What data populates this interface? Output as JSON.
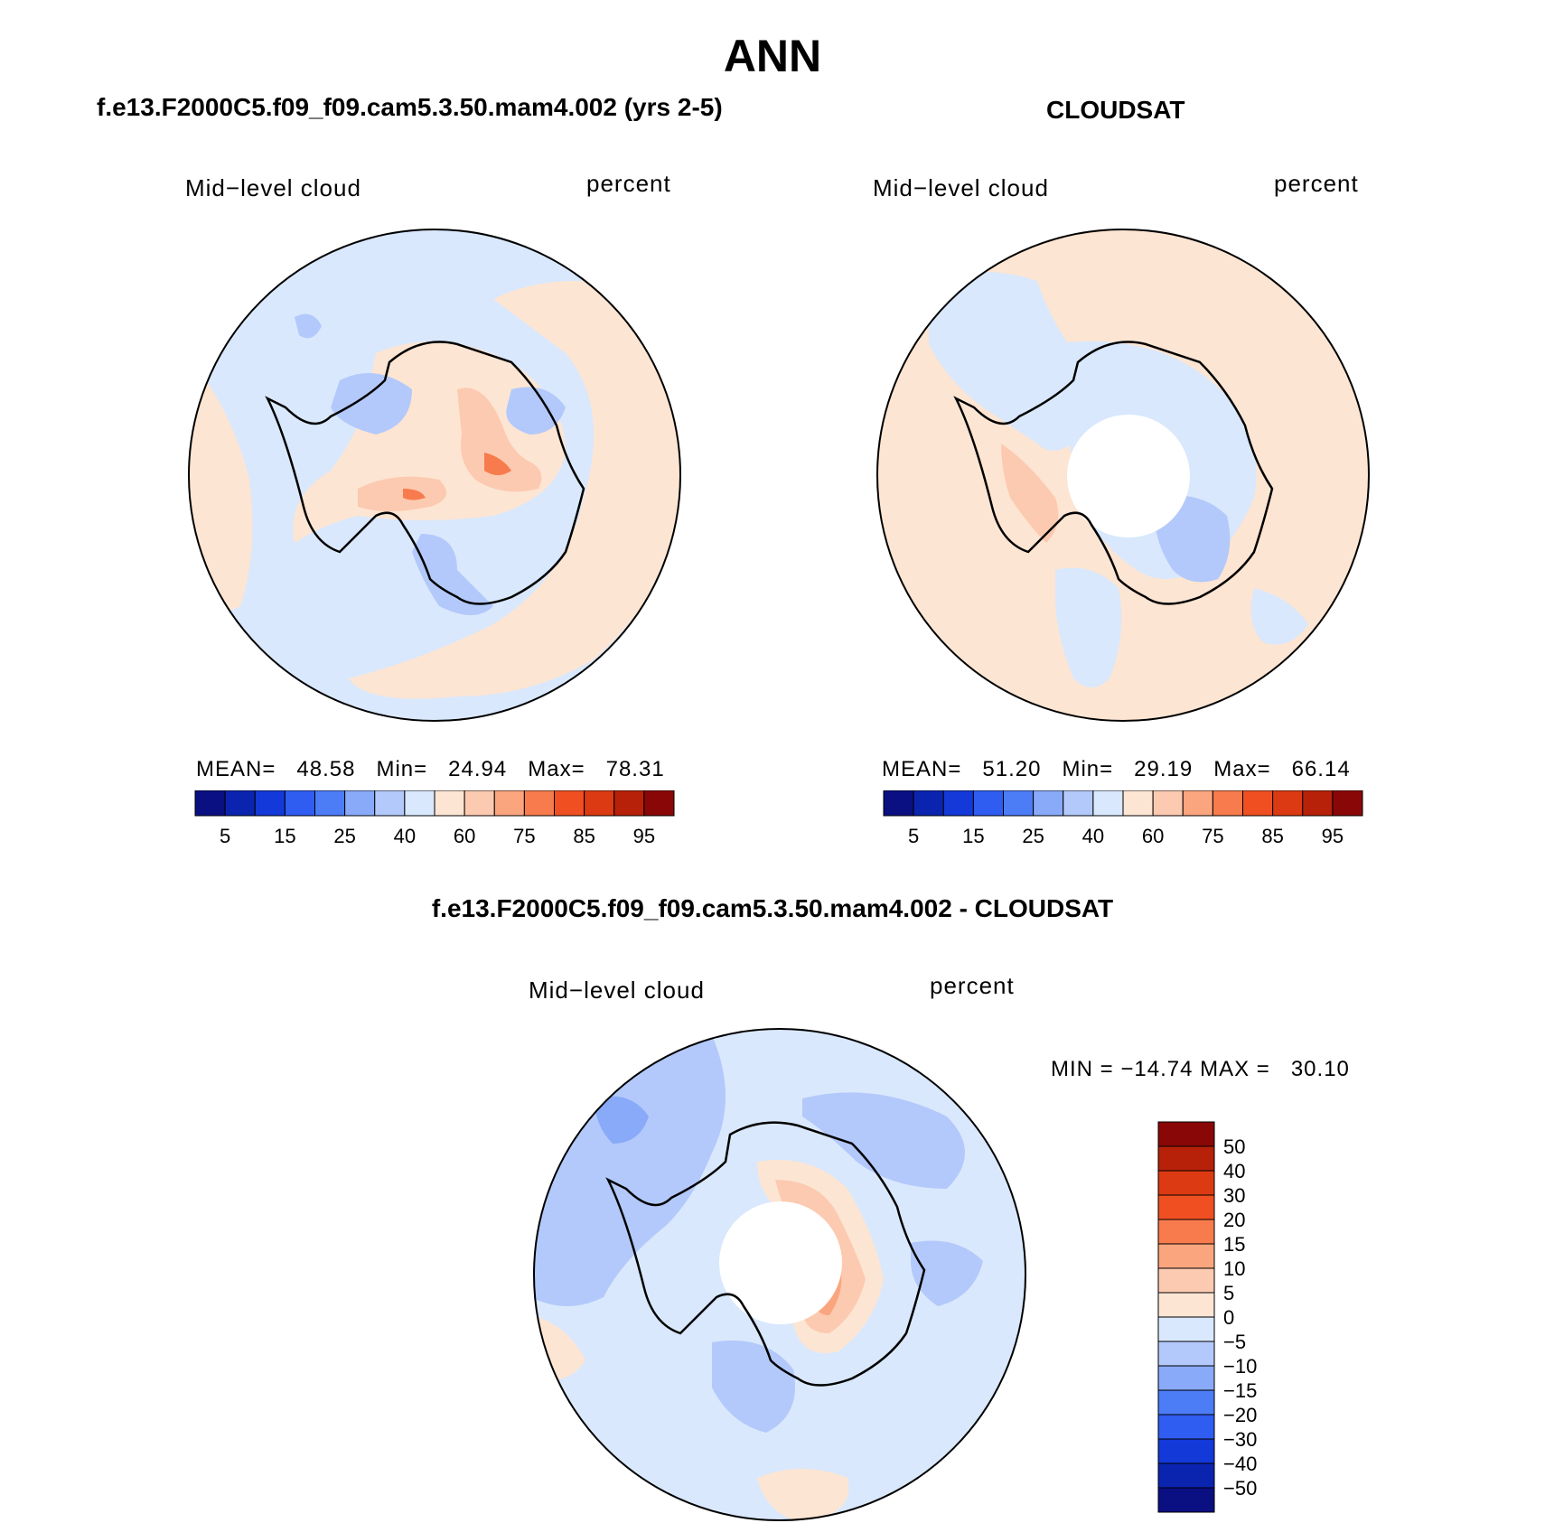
{
  "page": {
    "title": "ANN",
    "panel1_title": "f.e13.F2000C5.f09_f09.cam5.3.50.mam4.002 (yrs 2-5)",
    "panel2_title": "CLOUDSAT",
    "diff_title": "f.e13.F2000C5.f09_f09.cam5.3.50.mam4.002 - CLOUDSAT"
  },
  "chart_data": [
    {
      "type": "heatmap",
      "projection": "south polar stereographic",
      "variable": "Mid−level cloud",
      "units": "percent",
      "stats": {
        "mean_label": "MEAN=",
        "mean": "48.58",
        "min_label": "Min=",
        "min": "24.94",
        "max_label": "Max=",
        "max": "78.31"
      },
      "colorbar": {
        "orientation": "horizontal",
        "levels": [
          5,
          10,
          15,
          20,
          25,
          30,
          40,
          50,
          60,
          70,
          75,
          80,
          85,
          90,
          95
        ],
        "tick_labels": [
          "5",
          "15",
          "25",
          "40",
          "60",
          "75",
          "85",
          "95"
        ],
        "colors": [
          "#0a0f82",
          "#0b24b0",
          "#1339d9",
          "#2f5df2",
          "#4d7cf7",
          "#89aaf8",
          "#b3c9fb",
          "#d9e8fc",
          "#fde5d3",
          "#fccab0",
          "#faa57e",
          "#f77b4d",
          "#f04f22",
          "#dc3a12",
          "#b82109",
          "#8a0707"
        ]
      },
      "features": "Antarctic coastline outline; blue minima over West Antarctica and Weddell/Ross regions; red maxima over East Antarctic plateau"
    },
    {
      "type": "heatmap",
      "projection": "south polar stereographic",
      "variable": "Mid−level cloud",
      "units": "percent",
      "stats": {
        "mean_label": "MEAN=",
        "mean": "51.20",
        "min_label": "Min=",
        "min": "29.19",
        "max_label": "Max=",
        "max": "66.14"
      },
      "colorbar": {
        "orientation": "horizontal",
        "levels": [
          5,
          10,
          15,
          20,
          25,
          30,
          40,
          50,
          60,
          70,
          75,
          80,
          85,
          90,
          95
        ],
        "tick_labels": [
          "5",
          "15",
          "25",
          "40",
          "60",
          "75",
          "85",
          "95"
        ],
        "colors": [
          "#0a0f82",
          "#0b24b0",
          "#1339d9",
          "#2f5df2",
          "#4d7cf7",
          "#89aaf8",
          "#b3c9fb",
          "#d9e8fc",
          "#fde5d3",
          "#fccab0",
          "#faa57e",
          "#f77b4d",
          "#f04f22",
          "#dc3a12",
          "#b82109",
          "#8a0707"
        ]
      },
      "features": "Missing data circle around South Pole; light orange over Southern Ocean; blue over continent"
    },
    {
      "type": "heatmap",
      "projection": "south polar stereographic",
      "variable": "Mid−level cloud",
      "units": "percent",
      "stats": {
        "min_label": "MIN =",
        "min": "−14.74",
        "max_label": "MAX =",
        "max": "30.10"
      },
      "colorbar": {
        "orientation": "vertical",
        "tick_labels": [
          "50",
          "40",
          "30",
          "20",
          "15",
          "10",
          "5",
          "0",
          "−5",
          "−10",
          "−15",
          "−20",
          "−30",
          "−40",
          "−50"
        ],
        "colors": [
          "#8a0707",
          "#b82109",
          "#dc3a12",
          "#f04f22",
          "#f77b4d",
          "#faa57e",
          "#fccab0",
          "#fde5d3",
          "#d9e8fc",
          "#b3c9fb",
          "#89aaf8",
          "#4d7cf7",
          "#2f5df2",
          "#1339d9",
          "#0b24b0",
          "#0a0f82"
        ]
      },
      "features": "Missing data circle around pole; positive differences over East Antarctica; negative differences elsewhere"
    }
  ]
}
